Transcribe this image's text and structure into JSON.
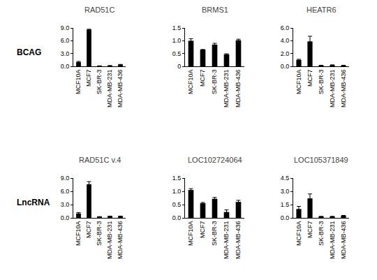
{
  "row_labels": [
    "BCAG",
    "LncRNA"
  ],
  "chart_data": [
    {
      "type": "bar",
      "title": "RAD51C",
      "color": "#000000",
      "categories": [
        "MCF10A",
        "MCF7",
        "SK-BR-3",
        "MDA-MB-231",
        "MDA-MB-436"
      ],
      "values": [
        1.0,
        8.6,
        0.1,
        0.15,
        0.4
      ],
      "errors": [
        0.15,
        0.1,
        0.02,
        0.02,
        0.05
      ],
      "ylim": [
        0,
        9
      ],
      "yticks": [
        {
          "value": 0,
          "label": "0.0"
        },
        {
          "value": 3,
          "label": "3.0"
        },
        {
          "value": 6,
          "label": "6.0"
        },
        {
          "value": 9,
          "label": "9.0"
        }
      ]
    },
    {
      "type": "bar",
      "title": "BRMS1",
      "color": "#000000",
      "categories": [
        "MCF10A",
        "MCF7",
        "SK-BR-3",
        "MDA-MB-231",
        "MDA-MB-436"
      ],
      "values": [
        1.0,
        0.65,
        0.85,
        0.47,
        1.02
      ],
      "errors": [
        0.08,
        0.01,
        0.05,
        0.02,
        0.04
      ],
      "ylim": [
        0,
        1.5
      ],
      "yticks": [
        0,
        0.5,
        {
          "value": 1,
          "label": "1.0"
        },
        1.5
      ]
    },
    {
      "type": "bar",
      "title": "HEATR6",
      "color": "#000000",
      "categories": [
        "MCF10A",
        "MCF7",
        "SK-BR-3",
        "MDA-MB-231",
        "MDA-MB-436"
      ],
      "values": [
        1.0,
        3.9,
        0.15,
        0.2,
        0.15
      ],
      "errors": [
        0.1,
        0.8,
        0.02,
        0.03,
        0.02
      ],
      "ylim": [
        0,
        6
      ],
      "yticks": [
        {
          "value": 0,
          "label": "0.0"
        },
        {
          "value": 2,
          "label": "2.0"
        },
        {
          "value": 4,
          "label": "4.0"
        },
        {
          "value": 6,
          "label": "6.0"
        }
      ]
    },
    {
      "type": "bar",
      "title": "RAD51C v.4",
      "color": "#000000",
      "categories": [
        "MCF10A",
        "MCF7",
        "SK-BR-3",
        "MDA-MB-231",
        "MDA-MB-436"
      ],
      "values": [
        1.0,
        7.6,
        0.25,
        0.35,
        0.35
      ],
      "errors": [
        0.2,
        0.6,
        0.03,
        0.05,
        0.05
      ],
      "ylim": [
        0,
        9
      ],
      "yticks": [
        {
          "value": 0,
          "label": "0.0"
        },
        {
          "value": 3,
          "label": "3.0"
        },
        {
          "value": 6,
          "label": "6.0"
        },
        {
          "value": 9,
          "label": "9.0"
        }
      ]
    },
    {
      "type": "bar",
      "title": "LOC102724064",
      "color": "#000000",
      "categories": [
        "MCF10A",
        "MCF7",
        "SK-BR-3",
        "MDA-MB-231",
        "MDA-MB-436"
      ],
      "values": [
        1.05,
        0.55,
        0.72,
        0.22,
        0.6
      ],
      "errors": [
        0.05,
        0.03,
        0.05,
        0.08,
        0.06
      ],
      "ylim": [
        0,
        1.5
      ],
      "yticks": [
        {
          "value": 0,
          "label": "0.0"
        },
        0.5,
        {
          "value": 1,
          "label": "1.0"
        },
        1.5
      ]
    },
    {
      "type": "bar",
      "title": "LOC105371849",
      "color": "#000000",
      "categories": [
        "MCF10A",
        "MCF7",
        "SK-BR-3",
        "MDA-MB-231",
        "MDA-MB-436"
      ],
      "values": [
        1.0,
        2.2,
        0.15,
        0.15,
        0.25
      ],
      "errors": [
        0.3,
        0.5,
        0.02,
        0.02,
        0.03
      ],
      "ylim": [
        0,
        4.5
      ],
      "yticks": [
        {
          "value": 0,
          "label": "0.0"
        },
        1.5,
        {
          "value": 3,
          "label": "3.0"
        },
        4.5
      ]
    }
  ]
}
